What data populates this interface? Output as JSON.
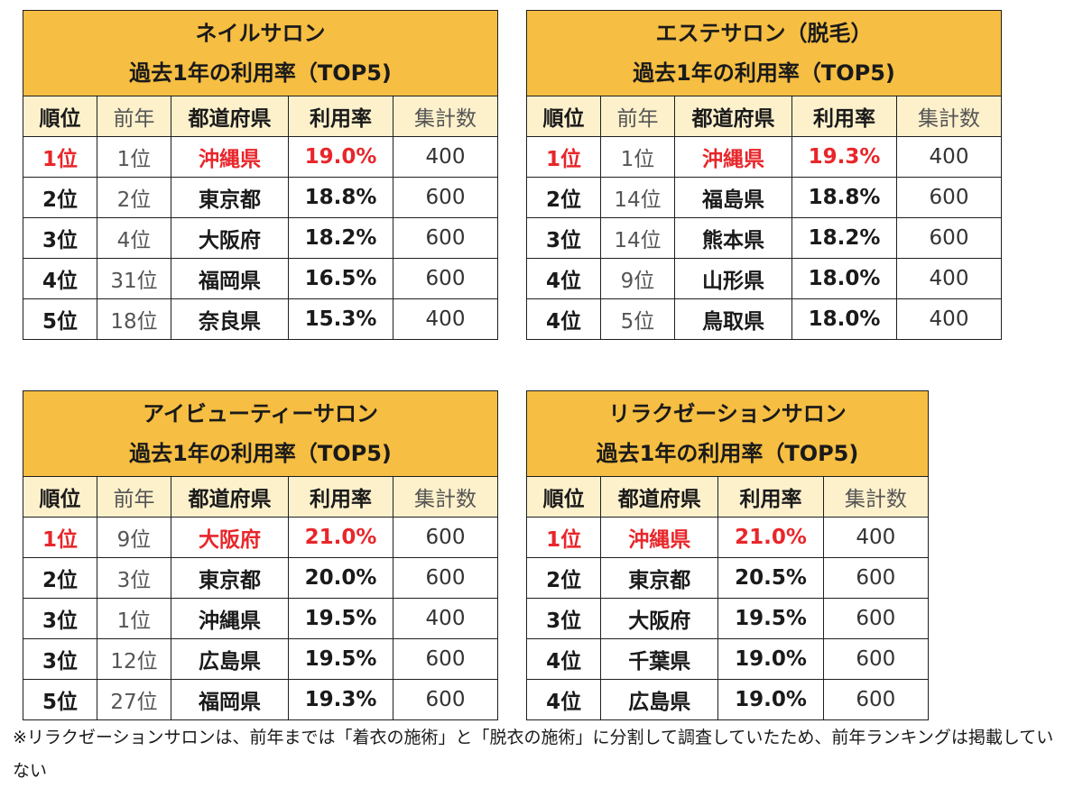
{
  "tables": [
    {
      "title1": "ネイルサロン",
      "title2": "過去1年の利用率（TOP5)",
      "headers": {
        "rank": "順位",
        "prev": "前年",
        "pref": "都道府県",
        "rate": "利用率",
        "count": "集計数"
      },
      "rows": [
        {
          "rank": "1位",
          "prev": "1位",
          "pref": "沖縄県",
          "rate": "19.0%",
          "count": "400"
        },
        {
          "rank": "2位",
          "prev": "2位",
          "pref": "東京都",
          "rate": "18.8%",
          "count": "600"
        },
        {
          "rank": "3位",
          "prev": "4位",
          "pref": "大阪府",
          "rate": "18.2%",
          "count": "600"
        },
        {
          "rank": "4位",
          "prev": "31位",
          "pref": "福岡県",
          "rate": "16.5%",
          "count": "600"
        },
        {
          "rank": "5位",
          "prev": "18位",
          "pref": "奈良県",
          "rate": "15.3%",
          "count": "400"
        }
      ]
    },
    {
      "title1": "エステサロン（脱毛）",
      "title2": "過去1年の利用率（TOP5)",
      "headers": {
        "rank": "順位",
        "prev": "前年",
        "pref": "都道府県",
        "rate": "利用率",
        "count": "集計数"
      },
      "rows": [
        {
          "rank": "1位",
          "prev": "1位",
          "pref": "沖縄県",
          "rate": "19.3%",
          "count": "400"
        },
        {
          "rank": "2位",
          "prev": "14位",
          "pref": "福島県",
          "rate": "18.8%",
          "count": "600"
        },
        {
          "rank": "3位",
          "prev": "14位",
          "pref": "熊本県",
          "rate": "18.2%",
          "count": "600"
        },
        {
          "rank": "4位",
          "prev": "9位",
          "pref": "山形県",
          "rate": "18.0%",
          "count": "400"
        },
        {
          "rank": "4位",
          "prev": "5位",
          "pref": "鳥取県",
          "rate": "18.0%",
          "count": "400"
        }
      ]
    },
    {
      "title1": "アイビューティーサロン",
      "title2": "過去1年の利用率（TOP5)",
      "headers": {
        "rank": "順位",
        "prev": "前年",
        "pref": "都道府県",
        "rate": "利用率",
        "count": "集計数"
      },
      "rows": [
        {
          "rank": "1位",
          "prev": "9位",
          "pref": "大阪府",
          "rate": "21.0%",
          "count": "600"
        },
        {
          "rank": "2位",
          "prev": "3位",
          "pref": "東京都",
          "rate": "20.0%",
          "count": "600"
        },
        {
          "rank": "3位",
          "prev": "1位",
          "pref": "沖縄県",
          "rate": "19.5%",
          "count": "400"
        },
        {
          "rank": "3位",
          "prev": "12位",
          "pref": "広島県",
          "rate": "19.5%",
          "count": "600"
        },
        {
          "rank": "5位",
          "prev": "27位",
          "pref": "福岡県",
          "rate": "19.3%",
          "count": "600"
        }
      ]
    },
    {
      "title1": "リラクゼーションサロン",
      "title2": "過去1年の利用率（TOP5)",
      "headers": {
        "rank": "順位",
        "pref": "都道府県",
        "rate": "利用率",
        "count": "集計数"
      },
      "rows": [
        {
          "rank": "1位",
          "pref": "沖縄県",
          "rate": "21.0%",
          "count": "400"
        },
        {
          "rank": "2位",
          "pref": "東京都",
          "rate": "20.5%",
          "count": "600"
        },
        {
          "rank": "3位",
          "pref": "大阪府",
          "rate": "19.5%",
          "count": "600"
        },
        {
          "rank": "4位",
          "pref": "千葉県",
          "rate": "19.0%",
          "count": "600"
        },
        {
          "rank": "4位",
          "pref": "広島県",
          "rate": "19.0%",
          "count": "600"
        }
      ]
    }
  ],
  "colors": {
    "header": "#f6be42",
    "subheader": "#fdf1cc",
    "highlight": "#e8262b"
  },
  "footnote": "※リラクゼーションサロンは、前年までは「着衣の施術」と「脱衣の施術」に分割して調査していたため、前年ランキングは掲載していない"
}
